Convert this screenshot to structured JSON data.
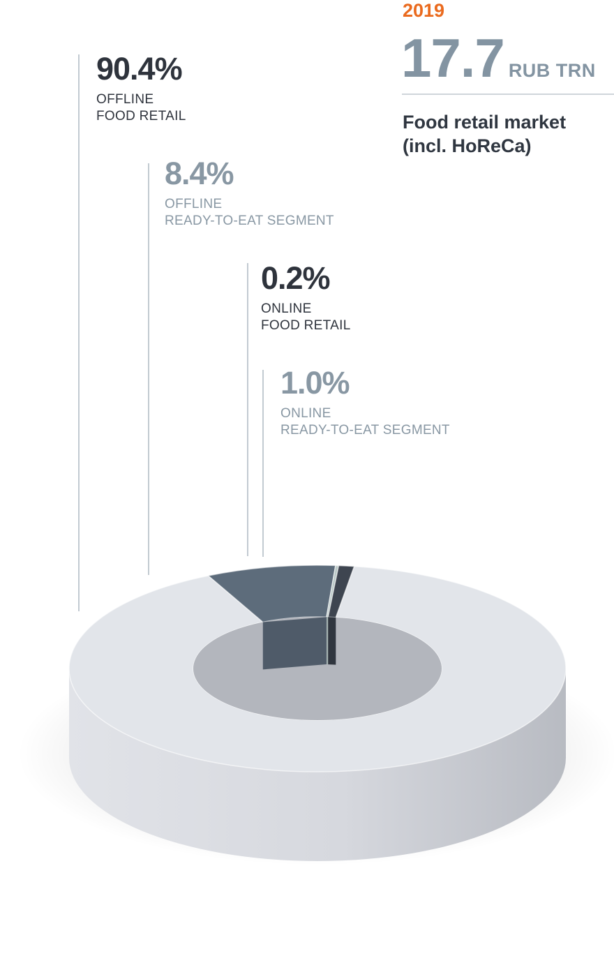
{
  "header": {
    "year": "2019",
    "total_value": "17.7",
    "total_unit": "RUB TRN",
    "title_line1": "Food retail market",
    "title_line2": "(incl. HoReCa)"
  },
  "chart_data": {
    "type": "pie",
    "style": "3d-donut",
    "unit": "%",
    "slices": [
      {
        "name": "OFFLINE FOOD RETAIL",
        "line1": "OFFLINE",
        "line2": "FOOD RETAIL",
        "value": 90.4,
        "label": "90.4%",
        "color": "#e2e5ea"
      },
      {
        "name": "OFFLINE READY-TO-EAT SEGMENT",
        "line1": "OFFLINE",
        "line2": "READY-TO-EAT SEGMENT",
        "value": 8.4,
        "label": "8.4%",
        "color": "#5d6c7b"
      },
      {
        "name": "ONLINE FOOD RETAIL",
        "line1": "ONLINE",
        "line2": "FOOD RETAIL",
        "value": 0.2,
        "label": "0.2%",
        "color": "#b9c8c6"
      },
      {
        "name": "ONLINE READY-TO-EAT SEGMENT",
        "line1": "ONLINE",
        "line2": "READY-TO-EAT SEGMENT",
        "value": 1.0,
        "label": "1.0%",
        "color": "#3e4550"
      }
    ]
  }
}
